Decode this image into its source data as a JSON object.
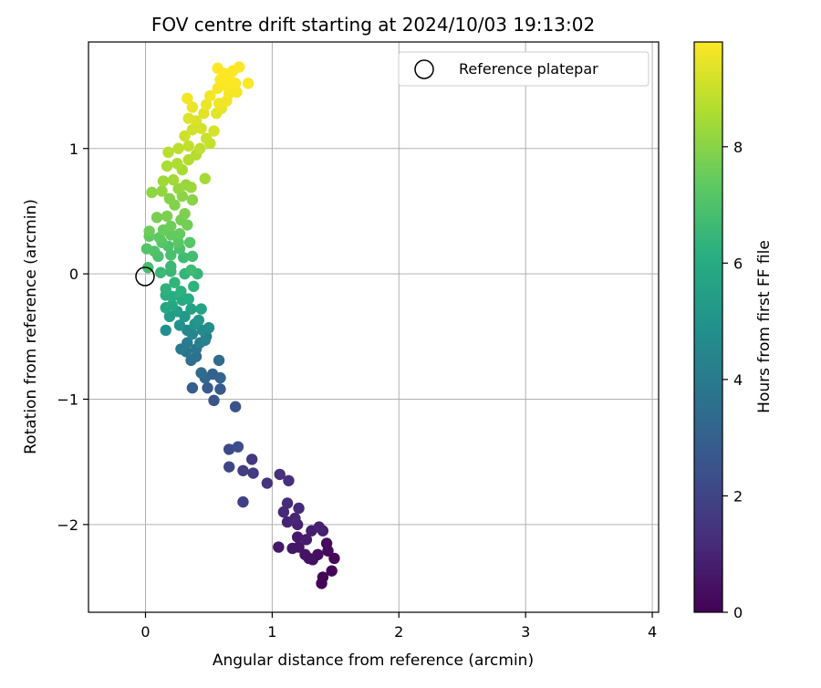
{
  "chart_data": {
    "type": "scatter",
    "title": "FOV centre drift starting at 2024/10/03 19:13:02",
    "xlabel": "Angular distance from reference (arcmin)",
    "ylabel": "Rotation from reference (arcmin)",
    "xlim": [
      -0.45,
      4.05
    ],
    "ylim": [
      -2.7,
      1.85
    ],
    "xticks": [
      0,
      1,
      2,
      3,
      4
    ],
    "yticks": [
      -2,
      -1,
      0,
      1
    ],
    "grid": true,
    "legend": {
      "position": "top-right",
      "entries": [
        "Reference platepar"
      ]
    },
    "reference_point": {
      "label": "Reference platepar",
      "x": 0,
      "y": 0
    },
    "colorbar": {
      "label": "Hours from first FF file",
      "range": [
        0,
        9.8
      ],
      "ticks": [
        0,
        2,
        4,
        6,
        8
      ],
      "colormap": "viridis"
    },
    "series": [
      {
        "values_note_keys": [
          "x",
          "y",
          "hours"
        ],
        "points": [
          [
            1.39,
            -2.47,
            0.05
          ],
          [
            1.4,
            -2.42,
            0.1
          ],
          [
            1.47,
            -2.37,
            0.15
          ],
          [
            1.49,
            -2.27,
            0.2
          ],
          [
            1.44,
            -2.21,
            0.25
          ],
          [
            1.43,
            -2.15,
            0.3
          ],
          [
            1.36,
            -2.24,
            0.35
          ],
          [
            1.32,
            -2.28,
            0.4
          ],
          [
            1.29,
            -2.27,
            0.45
          ],
          [
            1.26,
            -2.24,
            0.5
          ],
          [
            1.21,
            -2.18,
            0.55
          ],
          [
            1.16,
            -2.19,
            0.6
          ],
          [
            1.05,
            -2.18,
            0.65
          ],
          [
            1.2,
            -2.1,
            0.7
          ],
          [
            1.27,
            -2.12,
            0.75
          ],
          [
            1.31,
            -2.05,
            0.8
          ],
          [
            1.4,
            -2.05,
            0.85
          ],
          [
            1.37,
            -2.02,
            0.9
          ],
          [
            1.2,
            -2.0,
            0.95
          ],
          [
            1.12,
            -1.98,
            1.0
          ],
          [
            1.18,
            -1.95,
            1.05
          ],
          [
            1.09,
            -1.9,
            1.1
          ],
          [
            1.21,
            -1.87,
            1.15
          ],
          [
            1.12,
            -1.83,
            1.2
          ],
          [
            1.13,
            -1.65,
            1.3
          ],
          [
            1.06,
            -1.6,
            1.35
          ],
          [
            0.96,
            -1.67,
            1.45
          ],
          [
            0.84,
            -1.48,
            1.6
          ],
          [
            0.85,
            -1.59,
            1.7
          ],
          [
            0.77,
            -1.57,
            1.8
          ],
          [
            0.77,
            -1.82,
            1.9
          ],
          [
            0.66,
            -1.54,
            2.05
          ],
          [
            0.66,
            -1.4,
            2.2
          ],
          [
            0.73,
            -1.38,
            2.3
          ],
          [
            0.71,
            -1.06,
            2.45
          ],
          [
            0.54,
            -1.01,
            2.6
          ],
          [
            0.59,
            -0.92,
            2.75
          ],
          [
            0.49,
            -0.91,
            2.85
          ],
          [
            0.37,
            -0.91,
            2.95
          ],
          [
            0.53,
            -0.8,
            3.05
          ],
          [
            0.59,
            -0.83,
            3.15
          ],
          [
            0.47,
            -0.83,
            3.25
          ],
          [
            0.44,
            -0.79,
            3.35
          ],
          [
            0.58,
            -0.69,
            3.45
          ],
          [
            0.36,
            -0.69,
            3.55
          ],
          [
            0.4,
            -0.66,
            3.65
          ],
          [
            0.32,
            -0.62,
            3.75
          ],
          [
            0.4,
            -0.6,
            3.85
          ],
          [
            0.28,
            -0.6,
            3.95
          ],
          [
            0.33,
            -0.55,
            4.05
          ],
          [
            0.43,
            -0.55,
            4.15
          ],
          [
            0.47,
            -0.53,
            4.25
          ],
          [
            0.48,
            -0.5,
            4.35
          ],
          [
            0.37,
            -0.48,
            4.45
          ],
          [
            0.33,
            -0.45,
            4.55
          ],
          [
            0.45,
            -0.45,
            4.65
          ],
          [
            0.5,
            -0.43,
            4.75
          ],
          [
            0.16,
            -0.45,
            4.85
          ],
          [
            0.27,
            -0.41,
            4.95
          ],
          [
            0.39,
            -0.4,
            5.05
          ],
          [
            0.42,
            -0.37,
            5.15
          ],
          [
            0.31,
            -0.34,
            5.25
          ],
          [
            0.19,
            -0.34,
            5.35
          ],
          [
            0.25,
            -0.3,
            5.45
          ],
          [
            0.36,
            -0.28,
            5.55
          ],
          [
            0.44,
            -0.28,
            5.65
          ],
          [
            0.16,
            -0.27,
            5.75
          ],
          [
            0.21,
            -0.25,
            5.85
          ],
          [
            0.29,
            -0.21,
            5.95
          ],
          [
            0.34,
            -0.2,
            6.05
          ],
          [
            0.21,
            -0.18,
            6.1
          ],
          [
            0.16,
            -0.17,
            6.15
          ],
          [
            0.28,
            -0.14,
            6.2
          ],
          [
            0.16,
            -0.12,
            6.25
          ],
          [
            0.38,
            -0.1,
            6.3
          ],
          [
            0.23,
            -0.07,
            6.35
          ],
          [
            0.31,
            0.0,
            6.4
          ],
          [
            0.41,
            0.0,
            6.45
          ],
          [
            0.2,
            0.02,
            6.5
          ],
          [
            0.12,
            0.01,
            6.55
          ],
          [
            0.2,
            0.06,
            6.6
          ],
          [
            0.36,
            0.03,
            6.65
          ],
          [
            0.3,
            0.13,
            6.7
          ],
          [
            0.37,
            0.14,
            6.75
          ],
          [
            0.02,
            0.05,
            6.8
          ],
          [
            0.1,
            0.14,
            6.85
          ],
          [
            0.2,
            0.15,
            6.9
          ],
          [
            0.27,
            0.2,
            6.95
          ],
          [
            0.18,
            0.22,
            7.0
          ],
          [
            0.07,
            0.18,
            7.05
          ],
          [
            0.01,
            0.2,
            7.1
          ],
          [
            0.13,
            0.25,
            7.15
          ],
          [
            0.35,
            0.25,
            7.2
          ],
          [
            0.26,
            0.25,
            7.25
          ],
          [
            0.11,
            0.29,
            7.3
          ],
          [
            0.03,
            0.3,
            7.35
          ],
          [
            0.2,
            0.31,
            7.4
          ],
          [
            0.27,
            0.32,
            7.45
          ],
          [
            0.14,
            0.35,
            7.5
          ],
          [
            0.03,
            0.34,
            7.55
          ],
          [
            0.2,
            0.38,
            7.6
          ],
          [
            0.33,
            0.39,
            7.65
          ],
          [
            0.28,
            0.43,
            7.7
          ],
          [
            0.09,
            0.45,
            7.75
          ],
          [
            0.17,
            0.46,
            7.8
          ],
          [
            0.31,
            0.48,
            7.85
          ],
          [
            0.23,
            0.55,
            7.9
          ],
          [
            0.19,
            0.6,
            7.95
          ],
          [
            0.37,
            0.59,
            8.0
          ],
          [
            0.29,
            0.62,
            8.05
          ],
          [
            0.05,
            0.65,
            8.1
          ],
          [
            0.13,
            0.66,
            8.15
          ],
          [
            0.26,
            0.68,
            8.2
          ],
          [
            0.32,
            0.71,
            8.25
          ],
          [
            0.36,
            0.69,
            8.3
          ],
          [
            0.14,
            0.74,
            8.35
          ],
          [
            0.22,
            0.75,
            8.4
          ],
          [
            0.47,
            0.76,
            8.45
          ],
          [
            0.29,
            0.83,
            8.5
          ],
          [
            0.17,
            0.86,
            8.55
          ],
          [
            0.25,
            0.88,
            8.6
          ],
          [
            0.34,
            0.91,
            8.65
          ],
          [
            0.4,
            0.95,
            8.7
          ],
          [
            0.18,
            0.97,
            8.75
          ],
          [
            0.26,
            1.0,
            8.8
          ],
          [
            0.43,
            1.0,
            8.85
          ],
          [
            0.34,
            1.02,
            8.9
          ],
          [
            0.51,
            1.04,
            8.95
          ],
          [
            0.48,
            1.08,
            9.0
          ],
          [
            0.31,
            1.1,
            9.05
          ],
          [
            0.37,
            1.15,
            9.1
          ],
          [
            0.44,
            1.16,
            9.15
          ],
          [
            0.54,
            1.14,
            9.2
          ],
          [
            0.4,
            1.22,
            9.25
          ],
          [
            0.34,
            1.24,
            9.3
          ],
          [
            0.46,
            1.28,
            9.35
          ],
          [
            0.56,
            1.28,
            9.4
          ],
          [
            0.6,
            1.32,
            9.45
          ],
          [
            0.37,
            1.33,
            9.5
          ],
          [
            0.48,
            1.35,
            9.55
          ],
          [
            0.58,
            1.36,
            9.6
          ],
          [
            0.64,
            1.38,
            9.62
          ],
          [
            0.33,
            1.4,
            9.64
          ],
          [
            0.51,
            1.42,
            9.66
          ],
          [
            0.66,
            1.44,
            9.68
          ],
          [
            0.72,
            1.45,
            9.7
          ],
          [
            0.57,
            1.48,
            9.72
          ],
          [
            0.64,
            1.5,
            9.74
          ],
          [
            0.71,
            1.52,
            9.76
          ],
          [
            0.81,
            1.52,
            9.77
          ],
          [
            0.59,
            1.55,
            9.78
          ],
          [
            0.66,
            1.57,
            9.79
          ],
          [
            0.62,
            1.6,
            9.8
          ],
          [
            0.69,
            1.62,
            9.8
          ],
          [
            0.57,
            1.64,
            9.8
          ],
          [
            0.74,
            1.65,
            9.8
          ]
        ]
      }
    ]
  }
}
